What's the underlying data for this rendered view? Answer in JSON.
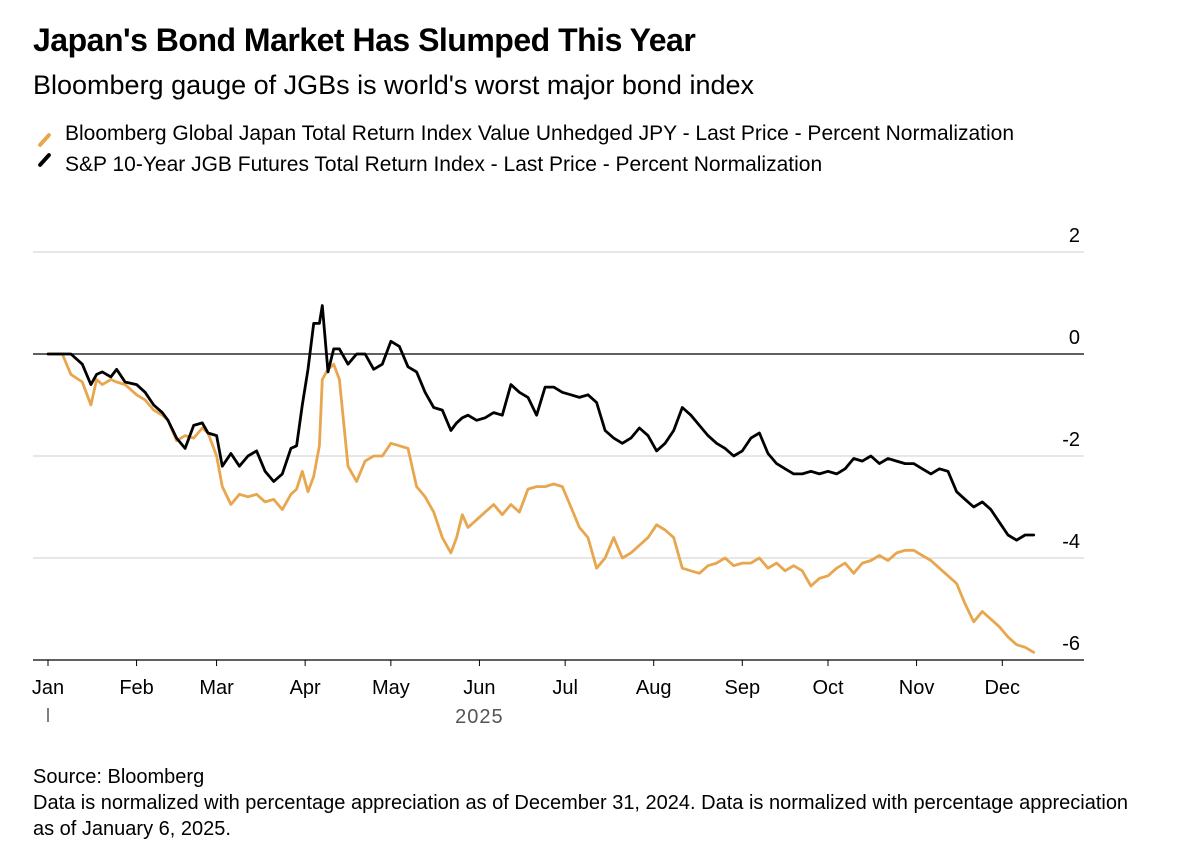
{
  "header": {
    "title": "Japan's Bond Market Has Slumped This Year",
    "subtitle": "Bloomberg gauge of JGBs is world's worst major bond index"
  },
  "legend": {
    "items": [
      {
        "label": "Bloomberg Global Japan Total Return Index Value Unhedged JPY - Last Price - Percent Normalization",
        "color": "#e8a64e"
      },
      {
        "label": "S&P 10-Year JGB Futures Total Return Index - Last Price - Percent Normalization",
        "color": "#000000"
      }
    ]
  },
  "footer": {
    "source": "Source: Bloomberg",
    "note": "Data is normalized with percentage appreciation as of December 31, 2024. Data is normalized with percentage appreciation as of January 6, 2025."
  },
  "chart_data": {
    "type": "line",
    "title": "Japan's Bond Market Has Slumped This Year",
    "xlabel": "2025",
    "ylabel": "",
    "ylim": [
      -6,
      2
    ],
    "yticks": [
      2,
      0,
      -2,
      -4,
      -6
    ],
    "xlim_day": [
      0,
      350
    ],
    "months": [
      {
        "label": "Jan",
        "day": 0
      },
      {
        "label": "Feb",
        "day": 31
      },
      {
        "label": "Mar",
        "day": 59
      },
      {
        "label": "Apr",
        "day": 90
      },
      {
        "label": "May",
        "day": 120
      },
      {
        "label": "Jun",
        "day": 151
      },
      {
        "label": "Jul",
        "day": 181
      },
      {
        "label": "Aug",
        "day": 212
      },
      {
        "label": "Sep",
        "day": 243
      },
      {
        "label": "Oct",
        "day": 273
      },
      {
        "label": "Nov",
        "day": 304
      },
      {
        "label": "Dec",
        "day": 334
      }
    ],
    "year_label": "2025",
    "zero_line": 0,
    "series": [
      {
        "name": "Bloomberg Global Japan Total Return Index Value Unhedged JPY - Last Price - Percent Normalization",
        "color": "#e8a64e",
        "day": [
          0,
          5,
          8,
          12,
          15,
          17,
          19,
          22,
          24,
          27,
          31,
          34,
          37,
          40,
          42,
          45,
          48,
          51,
          54,
          56,
          59,
          61,
          64,
          67,
          70,
          73,
          76,
          79,
          82,
          85,
          87,
          89,
          91,
          93,
          95,
          96,
          98,
          100,
          102,
          105,
          108,
          111,
          114,
          117,
          120,
          123,
          126,
          129,
          132,
          135,
          138,
          141,
          143,
          145,
          147,
          150,
          153,
          156,
          159,
          162,
          165,
          168,
          171,
          174,
          177,
          180,
          183,
          186,
          189,
          192,
          195,
          198,
          201,
          204,
          207,
          210,
          213,
          216,
          219,
          222,
          225,
          228,
          231,
          234,
          237,
          240,
          243,
          246,
          249,
          252,
          255,
          258,
          261,
          264,
          267,
          270,
          273,
          276,
          279,
          282,
          285,
          288,
          291,
          294,
          297,
          300,
          303,
          306,
          309,
          312,
          315,
          318,
          321,
          324,
          327,
          330,
          333,
          336,
          339,
          342,
          345
        ],
        "values": [
          0.0,
          0.0,
          -0.4,
          -0.55,
          -1.0,
          -0.5,
          -0.6,
          -0.5,
          -0.55,
          -0.6,
          -0.8,
          -0.9,
          -1.1,
          -1.2,
          -1.3,
          -1.7,
          -1.6,
          -1.65,
          -1.45,
          -1.55,
          -2.0,
          -2.6,
          -2.95,
          -2.75,
          -2.8,
          -2.75,
          -2.9,
          -2.85,
          -3.05,
          -2.75,
          -2.65,
          -2.3,
          -2.7,
          -2.4,
          -1.8,
          -0.5,
          -0.3,
          -0.2,
          -0.5,
          -2.2,
          -2.5,
          -2.1,
          -2.0,
          -2.0,
          -1.75,
          -1.8,
          -1.85,
          -2.6,
          -2.8,
          -3.1,
          -3.6,
          -3.9,
          -3.6,
          -3.15,
          -3.4,
          -3.25,
          -3.1,
          -2.95,
          -3.15,
          -2.95,
          -3.1,
          -2.65,
          -2.6,
          -2.6,
          -2.55,
          -2.6,
          -3.0,
          -3.4,
          -3.6,
          -4.2,
          -4.0,
          -3.6,
          -4.0,
          -3.9,
          -3.75,
          -3.6,
          -3.35,
          -3.45,
          -3.6,
          -4.2,
          -4.25,
          -4.3,
          -4.15,
          -4.1,
          -4.0,
          -4.15,
          -4.1,
          -4.1,
          -4.0,
          -4.2,
          -4.1,
          -4.25,
          -4.15,
          -4.25,
          -4.55,
          -4.4,
          -4.35,
          -4.2,
          -4.1,
          -4.3,
          -4.1,
          -4.05,
          -3.95,
          -4.05,
          -3.9,
          -3.85,
          -3.85,
          -3.95,
          -4.05,
          -4.2,
          -4.35,
          -4.5,
          -4.9,
          -5.25,
          -5.05,
          -5.2,
          -5.35,
          -5.55,
          -5.7,
          -5.75,
          -5.85
        ]
      },
      {
        "name": "S&P 10-Year JGB Futures Total Return Index - Last Price - Percent Normalization",
        "color": "#000000",
        "day": [
          0,
          5,
          8,
          12,
          15,
          17,
          19,
          22,
          24,
          27,
          31,
          34,
          37,
          40,
          42,
          45,
          48,
          51,
          54,
          56,
          59,
          61,
          64,
          67,
          70,
          73,
          76,
          79,
          82,
          85,
          87,
          89,
          91,
          93,
          95,
          96,
          98,
          100,
          102,
          105,
          108,
          111,
          114,
          117,
          120,
          123,
          126,
          129,
          132,
          135,
          138,
          141,
          143,
          145,
          147,
          150,
          153,
          156,
          159,
          162,
          165,
          168,
          171,
          174,
          177,
          180,
          183,
          186,
          189,
          192,
          195,
          198,
          201,
          204,
          207,
          210,
          213,
          216,
          219,
          222,
          225,
          228,
          231,
          234,
          237,
          240,
          243,
          246,
          249,
          252,
          255,
          258,
          261,
          264,
          267,
          270,
          273,
          276,
          279,
          282,
          285,
          288,
          291,
          294,
          297,
          300,
          303,
          306,
          309,
          312,
          315,
          318,
          321,
          324,
          327,
          330,
          333,
          336,
          339,
          342,
          345
        ],
        "values": [
          0.0,
          0.0,
          0.0,
          -0.2,
          -0.6,
          -0.4,
          -0.35,
          -0.45,
          -0.3,
          -0.55,
          -0.6,
          -0.75,
          -1.0,
          -1.15,
          -1.3,
          -1.65,
          -1.85,
          -1.4,
          -1.35,
          -1.55,
          -1.6,
          -2.2,
          -1.95,
          -2.2,
          -2.0,
          -1.9,
          -2.3,
          -2.5,
          -2.35,
          -1.85,
          -1.8,
          -1.0,
          -0.3,
          0.6,
          0.6,
          0.95,
          -0.35,
          0.1,
          0.1,
          -0.2,
          0.0,
          0.0,
          -0.3,
          -0.2,
          0.25,
          0.15,
          -0.25,
          -0.35,
          -0.75,
          -1.05,
          -1.1,
          -1.5,
          -1.35,
          -1.25,
          -1.2,
          -1.3,
          -1.25,
          -1.15,
          -1.2,
          -0.6,
          -0.75,
          -0.85,
          -1.2,
          -0.65,
          -0.65,
          -0.75,
          -0.8,
          -0.85,
          -0.8,
          -0.95,
          -1.5,
          -1.65,
          -1.75,
          -1.65,
          -1.45,
          -1.6,
          -1.9,
          -1.75,
          -1.5,
          -1.05,
          -1.2,
          -1.4,
          -1.6,
          -1.75,
          -1.85,
          -2.0,
          -1.9,
          -1.65,
          -1.55,
          -1.95,
          -2.15,
          -2.25,
          -2.35,
          -2.35,
          -2.3,
          -2.35,
          -2.3,
          -2.35,
          -2.25,
          -2.05,
          -2.1,
          -2.0,
          -2.15,
          -2.05,
          -2.1,
          -2.15,
          -2.15,
          -2.25,
          -2.35,
          -2.25,
          -2.3,
          -2.7,
          -2.85,
          -3.0,
          -2.9,
          -3.05,
          -3.3,
          -3.55,
          -3.65,
          -3.55,
          -3.55
        ]
      }
    ]
  }
}
